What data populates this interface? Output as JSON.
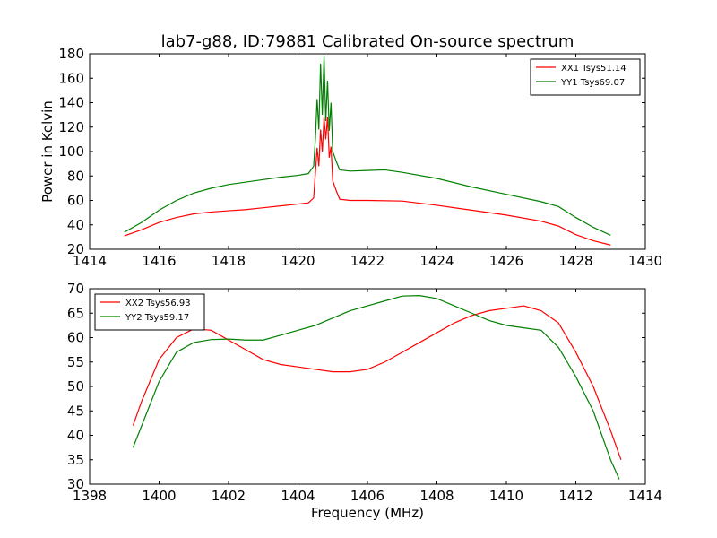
{
  "chart_data": [
    {
      "type": "line",
      "title": "lab7-g88, ID:79881 Calibrated On-source spectrum",
      "xlabel": "",
      "ylabel": "Power in Kelvin",
      "xlim": [
        1414,
        1430
      ],
      "ylim": [
        20,
        180
      ],
      "xticks": [
        "1414",
        "1416",
        "1418",
        "1420",
        "1422",
        "1424",
        "1426",
        "1428",
        "1430"
      ],
      "yticks": [
        "20",
        "40",
        "60",
        "80",
        "100",
        "120",
        "140",
        "160",
        "180"
      ],
      "legend_position": "top-right",
      "grid": false,
      "series": [
        {
          "name": "XX1 Tsys51.14",
          "color": "#ff0000",
          "points": [
            [
              1415.0,
              31
            ],
            [
              1415.5,
              36
            ],
            [
              1416.0,
              42
            ],
            [
              1416.5,
              46
            ],
            [
              1417.0,
              49
            ],
            [
              1417.5,
              50.5
            ],
            [
              1418.0,
              51.5
            ],
            [
              1418.5,
              52.5
            ],
            [
              1419.0,
              54
            ],
            [
              1419.5,
              55.5
            ],
            [
              1420.0,
              57
            ],
            [
              1420.3,
              58
            ],
            [
              1420.45,
              62
            ],
            [
              1420.5,
              82
            ],
            [
              1420.55,
              103
            ],
            [
              1420.6,
              88
            ],
            [
              1420.65,
              118
            ],
            [
              1420.7,
              100
            ],
            [
              1420.75,
              128
            ],
            [
              1420.8,
              110
            ],
            [
              1420.85,
              128
            ],
            [
              1420.9,
              95
            ],
            [
              1420.95,
              104
            ],
            [
              1421.0,
              76
            ],
            [
              1421.1,
              68
            ],
            [
              1421.2,
              61
            ],
            [
              1421.5,
              60
            ],
            [
              1422.0,
              60
            ],
            [
              1423.0,
              59.5
            ],
            [
              1424.0,
              56
            ],
            [
              1425.0,
              52
            ],
            [
              1426.0,
              48
            ],
            [
              1427.0,
              43
            ],
            [
              1427.5,
              39
            ],
            [
              1428.0,
              32
            ],
            [
              1428.5,
              27
            ],
            [
              1429.0,
              23.5
            ]
          ]
        },
        {
          "name": "YY1 Tsys69.07",
          "color": "#008000",
          "points": [
            [
              1415.0,
              34
            ],
            [
              1415.5,
              42
            ],
            [
              1416.0,
              52
            ],
            [
              1416.5,
              60
            ],
            [
              1417.0,
              66
            ],
            [
              1417.5,
              70
            ],
            [
              1418.0,
              73
            ],
            [
              1418.5,
              75
            ],
            [
              1419.0,
              77
            ],
            [
              1419.5,
              79
            ],
            [
              1420.0,
              80.5
            ],
            [
              1420.3,
              82
            ],
            [
              1420.45,
              88
            ],
            [
              1420.5,
              110
            ],
            [
              1420.55,
              143
            ],
            [
              1420.6,
              118
            ],
            [
              1420.65,
              172
            ],
            [
              1420.7,
              130
            ],
            [
              1420.75,
              178
            ],
            [
              1420.8,
              125
            ],
            [
              1420.85,
              158
            ],
            [
              1420.9,
              117
            ],
            [
              1420.95,
              140
            ],
            [
              1421.0,
              100
            ],
            [
              1421.1,
              92
            ],
            [
              1421.2,
              85
            ],
            [
              1421.5,
              84
            ],
            [
              1422.0,
              84.5
            ],
            [
              1422.5,
              85
            ],
            [
              1423.0,
              83
            ],
            [
              1424.0,
              78
            ],
            [
              1425.0,
              71
            ],
            [
              1426.0,
              65
            ],
            [
              1427.0,
              59
            ],
            [
              1427.5,
              55
            ],
            [
              1428.0,
              46
            ],
            [
              1428.5,
              38
            ],
            [
              1429.0,
              31.5
            ]
          ]
        }
      ]
    },
    {
      "type": "line",
      "title": "",
      "xlabel": "Frequency (MHz)",
      "ylabel": "",
      "xlim": [
        1398,
        1414
      ],
      "ylim": [
        30,
        70
      ],
      "xticks": [
        "1398",
        "1400",
        "1402",
        "1404",
        "1406",
        "1408",
        "1410",
        "1412",
        "1414"
      ],
      "yticks": [
        "30",
        "35",
        "40",
        "45",
        "50",
        "55",
        "60",
        "65",
        "70"
      ],
      "legend_position": "top-left",
      "grid": false,
      "series": [
        {
          "name": "XX2 Tsys56.93",
          "color": "#ff0000",
          "points": [
            [
              1399.25,
              42
            ],
            [
              1399.5,
              47
            ],
            [
              1400.0,
              55.5
            ],
            [
              1400.5,
              60
            ],
            [
              1401.0,
              61.8
            ],
            [
              1401.5,
              61.5
            ],
            [
              1402.0,
              59.5
            ],
            [
              1402.5,
              57.5
            ],
            [
              1403.0,
              55.5
            ],
            [
              1403.5,
              54.5
            ],
            [
              1404.0,
              54
            ],
            [
              1404.5,
              53.5
            ],
            [
              1405.0,
              53
            ],
            [
              1405.5,
              53
            ],
            [
              1406.0,
              53.5
            ],
            [
              1406.5,
              55
            ],
            [
              1407.0,
              57
            ],
            [
              1407.5,
              59
            ],
            [
              1408.0,
              61
            ],
            [
              1408.5,
              63
            ],
            [
              1409.0,
              64.5
            ],
            [
              1409.5,
              65.5
            ],
            [
              1410.0,
              66
            ],
            [
              1410.5,
              66.5
            ],
            [
              1411.0,
              65.5
            ],
            [
              1411.5,
              63
            ],
            [
              1412.0,
              57
            ],
            [
              1412.5,
              50
            ],
            [
              1413.0,
              41
            ],
            [
              1413.3,
              35
            ]
          ]
        },
        {
          "name": "YY2 Tsys59.17",
          "color": "#008000",
          "points": [
            [
              1399.25,
              37.5
            ],
            [
              1399.5,
              42
            ],
            [
              1400.0,
              51
            ],
            [
              1400.5,
              57
            ],
            [
              1401.0,
              59
            ],
            [
              1401.5,
              59.6
            ],
            [
              1402.0,
              59.7
            ],
            [
              1402.5,
              59.5
            ],
            [
              1403.0,
              59.5
            ],
            [
              1403.5,
              60.5
            ],
            [
              1404.0,
              61.5
            ],
            [
              1404.5,
              62.5
            ],
            [
              1405.0,
              64
            ],
            [
              1405.5,
              65.5
            ],
            [
              1406.0,
              66.5
            ],
            [
              1406.5,
              67.5
            ],
            [
              1407.0,
              68.5
            ],
            [
              1407.5,
              68.6
            ],
            [
              1408.0,
              68
            ],
            [
              1408.5,
              66.5
            ],
            [
              1409.0,
              65
            ],
            [
              1409.5,
              63.5
            ],
            [
              1410.0,
              62.5
            ],
            [
              1410.5,
              62
            ],
            [
              1411.0,
              61.5
            ],
            [
              1411.5,
              58
            ],
            [
              1412.0,
              52
            ],
            [
              1412.5,
              45
            ],
            [
              1413.0,
              35
            ],
            [
              1413.25,
              31
            ]
          ]
        }
      ]
    }
  ]
}
